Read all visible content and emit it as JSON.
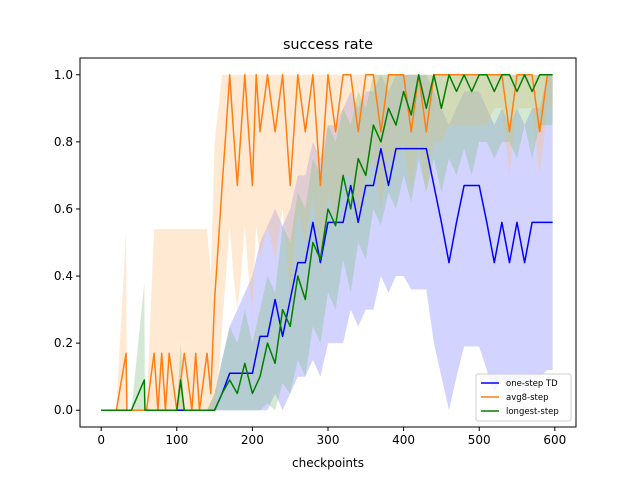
{
  "chart_data": {
    "type": "line",
    "title": "success rate",
    "xlabel": "checkpoints",
    "ylabel": "",
    "xlim": [
      -28,
      628
    ],
    "ylim": [
      -0.05,
      1.05
    ],
    "x_ticks": [
      0,
      100,
      200,
      300,
      400,
      500,
      600
    ],
    "y_ticks": [
      0.0,
      0.2,
      0.4,
      0.6,
      0.8,
      1.0
    ],
    "x_tick_labels": [
      "0",
      "100",
      "200",
      "300",
      "400",
      "500",
      "600"
    ],
    "y_tick_labels": [
      "0.0",
      "0.2",
      "0.4",
      "0.6",
      "0.8",
      "1.0"
    ],
    "grid": false,
    "legend_position": "lower-right",
    "series": [
      {
        "name": "one-step TD",
        "color": "#0000ff",
        "band_color": "#8080ff",
        "x": [
          0,
          20,
          40,
          60,
          80,
          100,
          120,
          140,
          150,
          160,
          170,
          180,
          190,
          200,
          210,
          220,
          230,
          240,
          250,
          260,
          270,
          280,
          290,
          300,
          310,
          320,
          330,
          340,
          350,
          360,
          370,
          380,
          390,
          400,
          410,
          420,
          430,
          440,
          450,
          460,
          470,
          480,
          490,
          500,
          510,
          520,
          530,
          540,
          550,
          560,
          570,
          580,
          590,
          597
        ],
        "y": [
          0,
          0,
          0,
          0,
          0,
          0,
          0,
          0,
          0,
          0.05,
          0.11,
          0.11,
          0.11,
          0.11,
          0.22,
          0.22,
          0.33,
          0.22,
          0.33,
          0.44,
          0.44,
          0.56,
          0.44,
          0.56,
          0.56,
          0.56,
          0.67,
          0.56,
          0.67,
          0.67,
          0.78,
          0.67,
          0.78,
          0.78,
          0.78,
          0.78,
          0.78,
          0.67,
          0.56,
          0.44,
          0.56,
          0.67,
          0.67,
          0.67,
          0.56,
          0.44,
          0.56,
          0.44,
          0.56,
          0.44,
          0.56,
          0.56,
          0.56,
          0.56
        ],
        "lower": [
          0,
          0,
          0,
          0,
          0,
          0,
          0,
          0,
          0,
          0,
          0,
          0,
          0,
          0,
          0,
          0,
          0.05,
          0,
          0.05,
          0.1,
          0.1,
          0.15,
          0.1,
          0.2,
          0.2,
          0.2,
          0.3,
          0.25,
          0.3,
          0.3,
          0.4,
          0.35,
          0.4,
          0.4,
          0.36,
          0.36,
          0.36,
          0.2,
          0.1,
          0,
          0.1,
          0.19,
          0.19,
          0.19,
          0.12,
          0.05,
          0.1,
          0.05,
          0.1,
          0.05,
          0.1,
          0.1,
          0.12,
          0.12
        ],
        "upper": [
          0,
          0,
          0,
          0,
          0,
          0,
          0,
          0,
          0.05,
          0.15,
          0.25,
          0.3,
          0.35,
          0.4,
          0.5,
          0.55,
          0.6,
          0.55,
          0.6,
          0.7,
          0.7,
          0.8,
          0.75,
          0.85,
          0.85,
          0.9,
          0.95,
          0.9,
          0.95,
          0.95,
          1.0,
          0.95,
          1.0,
          1.0,
          1.0,
          1.0,
          1.0,
          0.95,
          0.9,
          0.85,
          0.9,
          0.95,
          0.95,
          0.95,
          0.9,
          0.85,
          0.9,
          0.85,
          0.9,
          0.85,
          0.9,
          0.9,
          1.0,
          1.0
        ]
      },
      {
        "name": "avg8-step",
        "color": "#ff7f0e",
        "band_color": "#ffbf80",
        "x": [
          0,
          20,
          33,
          34,
          40,
          60,
          70,
          75,
          80,
          85,
          90,
          100,
          110,
          120,
          125,
          130,
          140,
          145,
          150,
          155,
          160,
          165,
          170,
          175,
          180,
          185,
          190,
          195,
          200,
          205,
          210,
          220,
          230,
          240,
          250,
          260,
          270,
          280,
          290,
          300,
          310,
          320,
          330,
          340,
          350,
          360,
          370,
          380,
          390,
          400,
          410,
          420,
          430,
          440,
          450,
          460,
          470,
          480,
          490,
          500,
          510,
          520,
          530,
          540,
          550,
          560,
          570,
          580,
          590,
          597
        ],
        "y": [
          0,
          0,
          0.17,
          0,
          0,
          0,
          0.17,
          0,
          0.17,
          0,
          0.17,
          0,
          0.17,
          0,
          0.17,
          0,
          0.17,
          0.05,
          0.33,
          0.5,
          0.67,
          0.83,
          1.0,
          0.83,
          0.67,
          0.83,
          1.0,
          0.83,
          0.67,
          1.0,
          0.83,
          1.0,
          0.83,
          1.0,
          0.67,
          1.0,
          0.83,
          1.0,
          0.67,
          1.0,
          0.83,
          1.0,
          1.0,
          0.83,
          1.0,
          1.0,
          0.83,
          1.0,
          1.0,
          1.0,
          0.83,
          1.0,
          0.83,
          1.0,
          1.0,
          1.0,
          1.0,
          1.0,
          1.0,
          1.0,
          1.0,
          1.0,
          1.0,
          0.83,
          1.0,
          1.0,
          1.0,
          0.83,
          1.0,
          1.0
        ],
        "lower": [
          0,
          0,
          0,
          0,
          0,
          0,
          0,
          0,
          0,
          0,
          0,
          0,
          0,
          0,
          0,
          0,
          0,
          0,
          0,
          0.1,
          0.25,
          0.4,
          0.55,
          0.4,
          0.3,
          0.4,
          0.55,
          0.4,
          0.3,
          0.55,
          0.45,
          0.55,
          0.45,
          0.6,
          0.35,
          0.6,
          0.5,
          0.65,
          0.4,
          0.65,
          0.55,
          0.7,
          0.7,
          0.55,
          0.7,
          0.75,
          0.6,
          0.75,
          0.75,
          0.8,
          0.65,
          0.8,
          0.65,
          0.8,
          0.8,
          0.85,
          0.85,
          0.85,
          0.85,
          0.85,
          0.85,
          0.9,
          0.9,
          0.7,
          0.9,
          0.9,
          0.9,
          0.7,
          0.9,
          0.9
        ],
        "upper": [
          0,
          0,
          0.54,
          0,
          0,
          0,
          0.54,
          0.54,
          0.54,
          0.54,
          0.54,
          0.54,
          0.54,
          0.54,
          0.54,
          0.54,
          0.54,
          0.4,
          0.8,
          0.9,
          1.0,
          1.0,
          1.0,
          1.0,
          1.0,
          1.0,
          1.0,
          1.0,
          1.0,
          1.0,
          1.0,
          1.0,
          1.0,
          1.0,
          1.0,
          1.0,
          1.0,
          1.0,
          1.0,
          1.0,
          1.0,
          1.0,
          1.0,
          1.0,
          1.0,
          1.0,
          1.0,
          1.0,
          1.0,
          1.0,
          1.0,
          1.0,
          1.0,
          1.0,
          1.0,
          1.0,
          1.0,
          1.0,
          1.0,
          1.0,
          1.0,
          1.0,
          1.0,
          1.0,
          1.0,
          1.0,
          1.0,
          1.0,
          1.0,
          1.0
        ]
      },
      {
        "name": "longest-step",
        "color": "#008000",
        "band_color": "#80c080",
        "x": [
          0,
          20,
          40,
          57,
          58,
          60,
          80,
          100,
          105,
          110,
          120,
          140,
          150,
          160,
          170,
          180,
          190,
          200,
          210,
          220,
          230,
          240,
          250,
          260,
          270,
          280,
          290,
          300,
          310,
          320,
          330,
          340,
          350,
          360,
          370,
          380,
          390,
          400,
          410,
          420,
          430,
          440,
          450,
          460,
          470,
          480,
          490,
          500,
          510,
          520,
          530,
          540,
          550,
          560,
          570,
          580,
          590,
          597
        ],
        "y": [
          0,
          0,
          0,
          0.09,
          0,
          0,
          0,
          0,
          0.09,
          0,
          0,
          0,
          0,
          0.05,
          0.09,
          0.05,
          0.14,
          0.05,
          0.1,
          0.2,
          0.14,
          0.3,
          0.25,
          0.4,
          0.33,
          0.5,
          0.45,
          0.6,
          0.55,
          0.7,
          0.6,
          0.75,
          0.7,
          0.85,
          0.8,
          0.9,
          0.85,
          0.95,
          0.88,
          1.0,
          0.9,
          1.0,
          0.9,
          1.0,
          0.95,
          1.0,
          0.95,
          1.0,
          1.0,
          0.95,
          1.0,
          1.0,
          0.95,
          1.0,
          0.95,
          1.0,
          1.0,
          1.0
        ],
        "lower": [
          0,
          0,
          0,
          0,
          0,
          0,
          0,
          0,
          0,
          0,
          0,
          0,
          0,
          0,
          0,
          0,
          0,
          0,
          0,
          0.02,
          0,
          0.08,
          0.05,
          0.15,
          0.1,
          0.25,
          0.2,
          0.35,
          0.3,
          0.45,
          0.35,
          0.5,
          0.45,
          0.6,
          0.55,
          0.65,
          0.6,
          0.7,
          0.62,
          0.75,
          0.65,
          0.75,
          0.65,
          0.75,
          0.7,
          0.78,
          0.7,
          0.8,
          0.8,
          0.75,
          0.8,
          0.8,
          0.75,
          0.85,
          0.75,
          0.85,
          0.85,
          0.85
        ],
        "upper": [
          0,
          0,
          0,
          0.38,
          0,
          0,
          0,
          0,
          0.2,
          0,
          0,
          0,
          0.05,
          0.15,
          0.25,
          0.2,
          0.3,
          0.2,
          0.3,
          0.4,
          0.35,
          0.55,
          0.5,
          0.65,
          0.6,
          0.75,
          0.7,
          0.85,
          0.8,
          0.9,
          0.85,
          0.95,
          0.9,
          1.0,
          1.0,
          1.0,
          1.0,
          1.0,
          1.0,
          1.0,
          1.0,
          1.0,
          1.0,
          1.0,
          1.0,
          1.0,
          1.0,
          1.0,
          1.0,
          1.0,
          1.0,
          1.0,
          1.0,
          1.0,
          1.0,
          1.0,
          1.0,
          1.0
        ]
      }
    ]
  }
}
